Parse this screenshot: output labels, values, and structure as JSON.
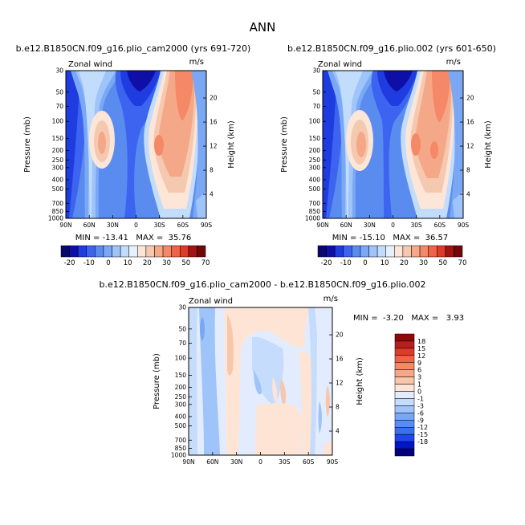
{
  "page_title": "ANN",
  "colors": {
    "wind_scale": [
      "#08086e",
      "#0f0fa8",
      "#1e3ce0",
      "#3c64f0",
      "#5a8cf0",
      "#7aa8f5",
      "#9ec4fa",
      "#c2dcfc",
      "#e6f0ff",
      "#fde6d8",
      "#f5c8b0",
      "#f5a888",
      "#f58866",
      "#f06446",
      "#dc3c28",
      "#a01414",
      "#700808"
    ],
    "diff_scale": [
      "#000080",
      "#0014c8",
      "#1e46f0",
      "#3c6ef0",
      "#5a8cf5",
      "#78a8f5",
      "#9ec4fa",
      "#c6dcfc",
      "#e2ecfe",
      "#fde4d4",
      "#f8c6aa",
      "#f5a888",
      "#f58866",
      "#f06446",
      "#dc3c28",
      "#b81e1e",
      "#8c0a0a"
    ]
  },
  "panels": [
    {
      "title": "b.e12.B1850CN.f09_g16.plio_cam2000 (yrs 691-720)",
      "var_label": "Zonal wind",
      "units": "m/s",
      "min_max_text": "MIN = -13.41   MAX =  35.76"
    },
    {
      "title": "b.e12.B1850CN.f09_g16.plio.002 (yrs 601-650)",
      "var_label": "Zonal wind",
      "units": "m/s",
      "min_max_text": "MIN = -15.10   MAX =  36.57"
    },
    {
      "title": "b.e12.B1850CN.f09_g16.plio_cam2000 - b.e12.B1850CN.f09_g16.plio.002",
      "var_label": "Zonal wind",
      "units": "m/s",
      "min_max_text": "MIN =  -3.20   MAX =   3.93"
    }
  ],
  "chart_data": [
    {
      "type": "heatmap",
      "title": "b.e12.B1850CN.f09_g16.plio_cam2000 (yrs 691-720)",
      "ylabel": "Pressure (mb)",
      "y2label": "Height (km)",
      "x_ticks": [
        "90N",
        "60N",
        "30N",
        "0",
        "30S",
        "60S",
        "90S"
      ],
      "y_ticks": [
        "30",
        "50",
        "70",
        "100",
        "150",
        "200",
        "250",
        "300",
        "400",
        "500",
        "700",
        "850",
        "1000"
      ],
      "y2_ticks": [
        "20",
        "16",
        "12",
        "8",
        "4"
      ],
      "colorbar_labels": [
        "-20",
        "-10",
        "0",
        "10",
        "20",
        "30",
        "50",
        "70"
      ],
      "min": -13.41,
      "max": 35.76
    },
    {
      "type": "heatmap",
      "title": "b.e12.B1850CN.f09_g16.plio.002 (yrs 601-650)",
      "ylabel": "Pressure (mb)",
      "y2label": "Height (km)",
      "x_ticks": [
        "90N",
        "60N",
        "30N",
        "0",
        "30S",
        "60S",
        "90S"
      ],
      "y_ticks": [
        "30",
        "50",
        "70",
        "100",
        "150",
        "200",
        "250",
        "300",
        "400",
        "500",
        "700",
        "850",
        "1000"
      ],
      "y2_ticks": [
        "20",
        "16",
        "12",
        "8",
        "4"
      ],
      "colorbar_labels": [
        "-20",
        "-10",
        "0",
        "10",
        "20",
        "30",
        "50",
        "70"
      ],
      "min": -15.1,
      "max": 36.57
    },
    {
      "type": "heatmap",
      "title": "b.e12.B1850CN.f09_g16.plio_cam2000 - b.e12.B1850CN.f09_g16.plio.002",
      "ylabel": "Pressure (mb)",
      "y2label": "Height (km)",
      "x_ticks": [
        "90N",
        "60N",
        "30N",
        "0",
        "30S",
        "60S",
        "90S"
      ],
      "y_ticks": [
        "30",
        "50",
        "70",
        "100",
        "150",
        "200",
        "250",
        "300",
        "400",
        "500",
        "700",
        "850",
        "1000"
      ],
      "y2_ticks": [
        "20",
        "16",
        "12",
        "8",
        "4"
      ],
      "colorbar_labels": [
        "18",
        "15",
        "12",
        "9",
        "6",
        "3",
        "1",
        "0",
        "-1",
        "-3",
        "-6",
        "-9",
        "-12",
        "-15",
        "-18"
      ],
      "min": -3.2,
      "max": 3.93
    }
  ]
}
